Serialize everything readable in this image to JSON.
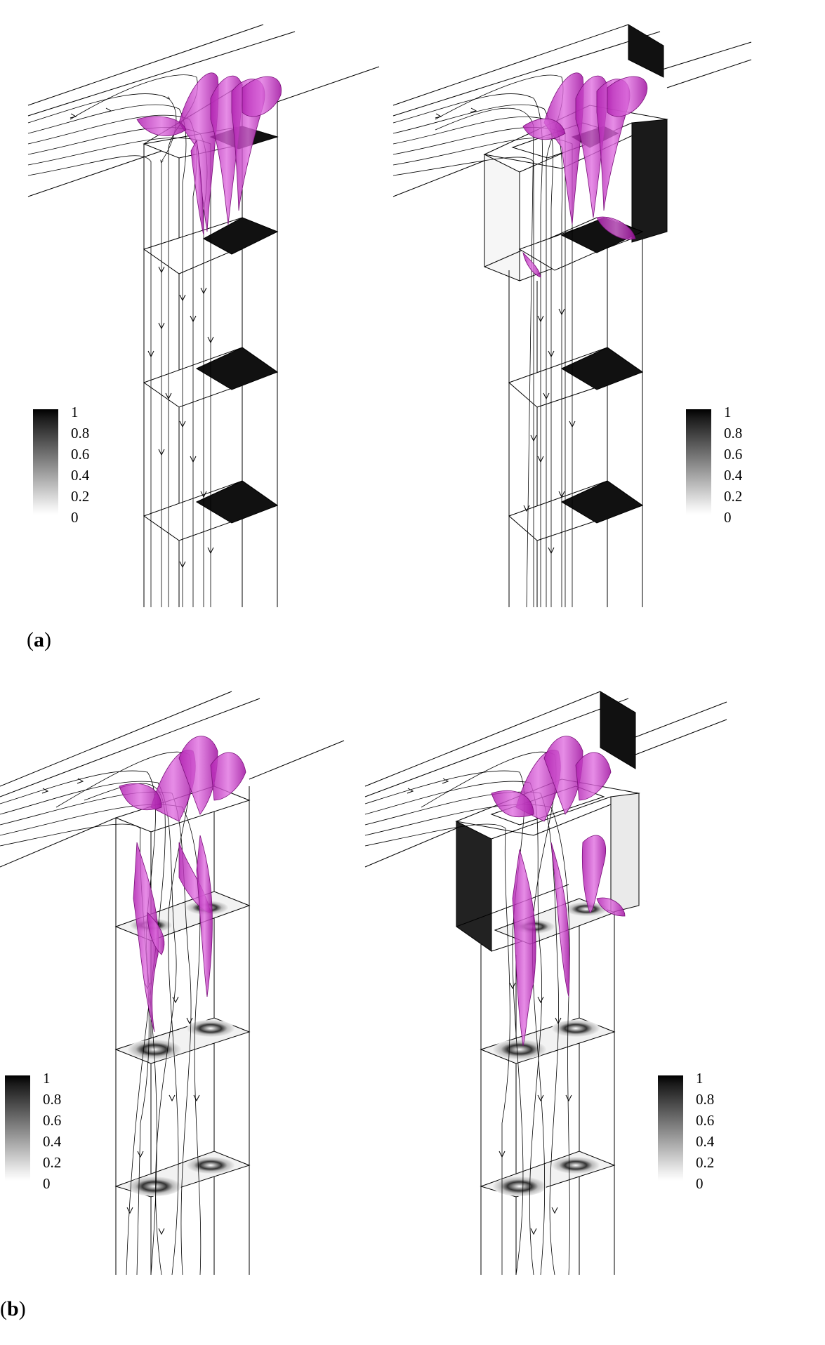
{
  "figure": {
    "panels": [
      {
        "label_open": "(",
        "label_letter": "a",
        "label_close": ")"
      },
      {
        "label_open": "(",
        "label_letter": "b",
        "label_close": ")"
      }
    ],
    "colorbar_ticks": [
      "1",
      "0.8",
      "0.6",
      "0.4",
      "0.2",
      "0"
    ],
    "colors": {
      "vortex": "#cc33cc",
      "slice_dark": "#111111",
      "line": "#000000"
    }
  }
}
